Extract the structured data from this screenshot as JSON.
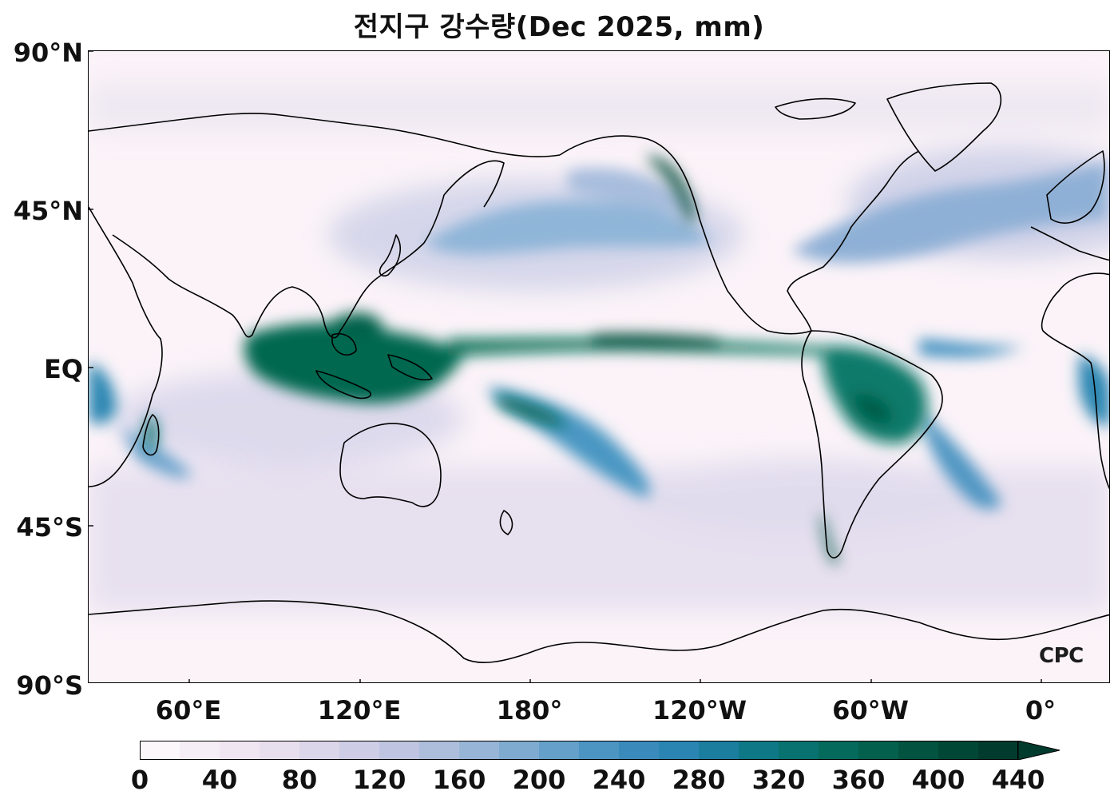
{
  "title": "전지구 강수량(Dec 2025, mm)",
  "lat_labels": [
    "90°N",
    "45°N",
    "EQ",
    "45°S",
    "90°S"
  ],
  "lon_labels": [
    "60°E",
    "120°E",
    "180°",
    "120°W",
    "60°W",
    "0°"
  ],
  "colorbar": {
    "ticks": [
      "0",
      "40",
      "80",
      "120",
      "160",
      "200",
      "240",
      "280",
      "320",
      "360",
      "400",
      "440"
    ],
    "colors": [
      "#fcf7fb",
      "#f5eef6",
      "#efe6f1",
      "#e8dfee",
      "#dcd6ea",
      "#cdcde6",
      "#bfc4e1",
      "#adbedc",
      "#97b5d6",
      "#7fabd1",
      "#64a0c9",
      "#4c94c2",
      "#3a8bbb",
      "#2b85b2",
      "#1c7e9f",
      "#0e7887",
      "#077270",
      "#046a5c",
      "#03604d",
      "#025440",
      "#014736",
      "#013b2e"
    ],
    "extend": "max"
  },
  "logo": "CPC"
}
